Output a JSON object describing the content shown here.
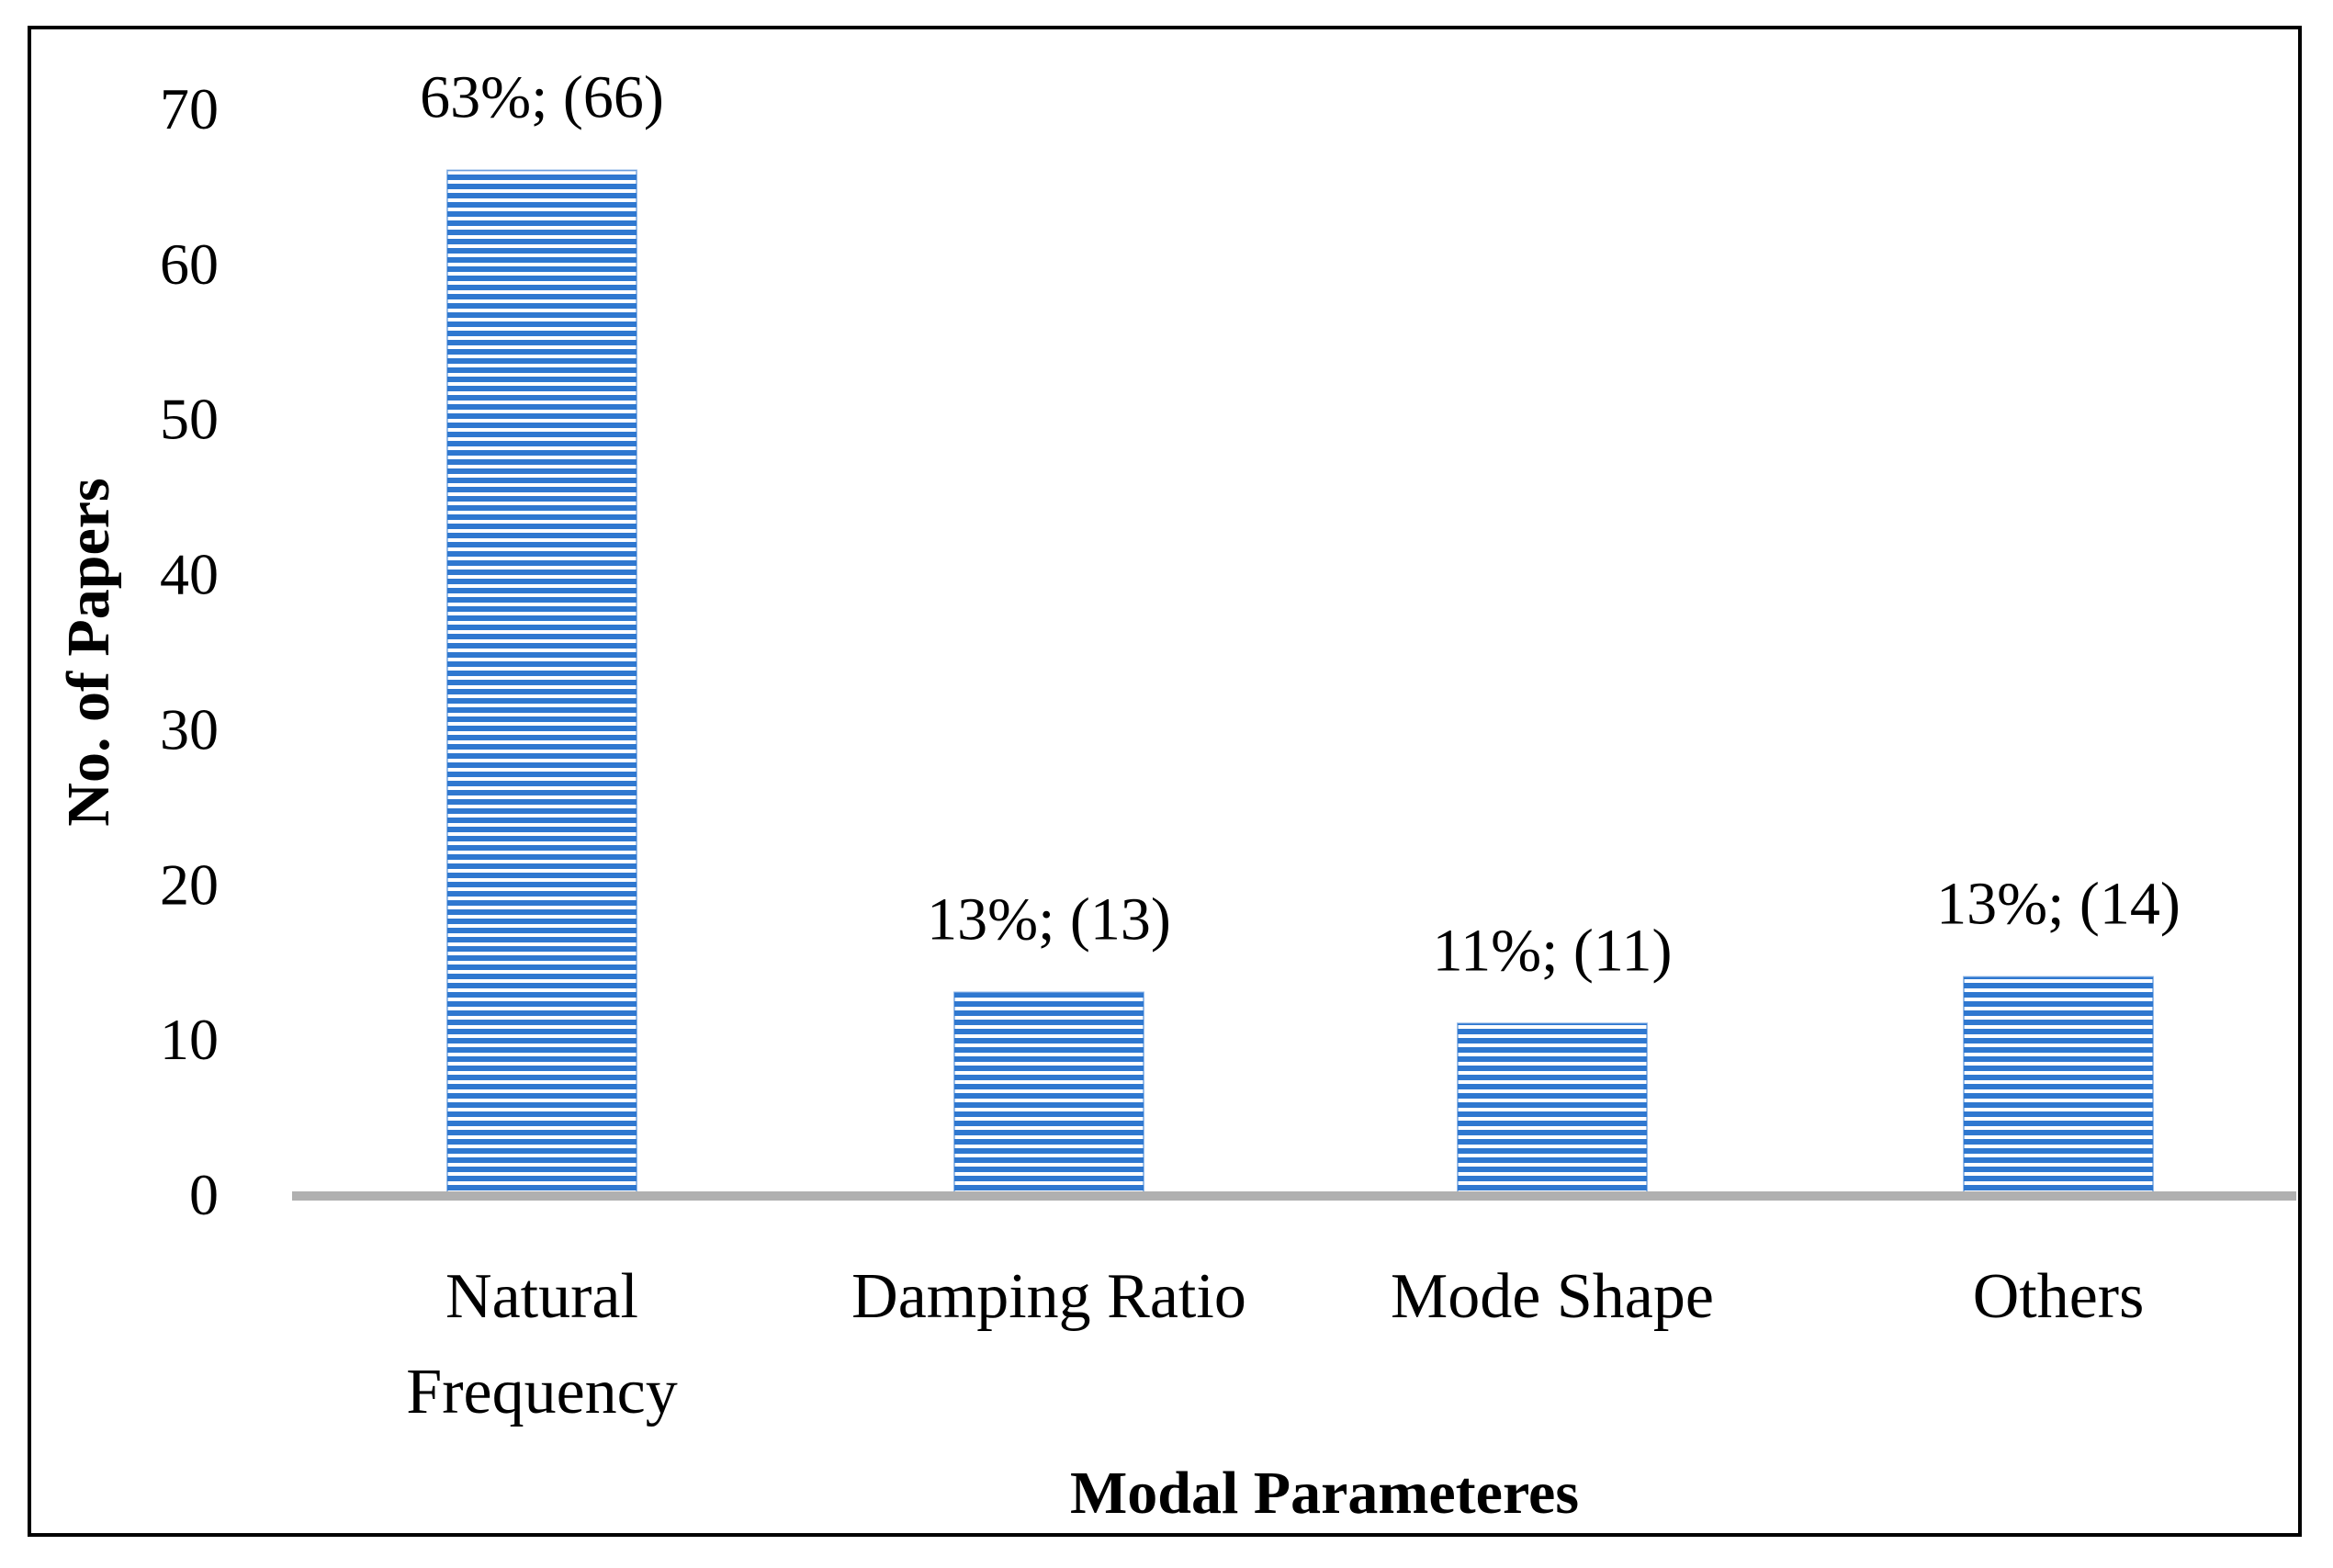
{
  "chart_data": {
    "type": "bar",
    "title": "",
    "xlabel": "Modal Parameteres",
    "ylabel": "No. of Papers",
    "ylim": [
      0,
      70
    ],
    "yticks": [
      0,
      10,
      20,
      30,
      40,
      50,
      60,
      70
    ],
    "grid": false,
    "categories": [
      [
        "Natural",
        "Frequency"
      ],
      [
        "Damping Ratio"
      ],
      [
        "Mode Shape"
      ],
      [
        "Others"
      ]
    ],
    "values": [
      66,
      13,
      11,
      14
    ],
    "data_labels": [
      "63%; (66)",
      "13%; (13)",
      "11%; (11)",
      "13%; (14)"
    ],
    "bar_color": "#2f78d0",
    "bar_stripe_color": "#ffffff",
    "axis_color": "#b0b0b0"
  }
}
